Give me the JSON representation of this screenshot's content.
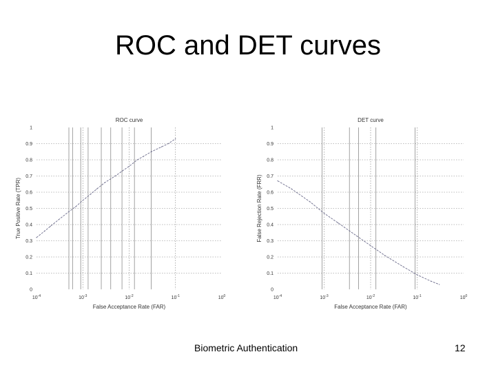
{
  "slide": {
    "title": "ROC and DET curves",
    "footer": "Biometric Authentication",
    "page_number": "12"
  },
  "chart_data": [
    {
      "type": "line",
      "title": "ROC curve",
      "xlabel": "False Acceptance Rate (FAR)",
      "ylabel": "True Positive Rate (TPR)",
      "xscale": "log",
      "xlim": [
        0.0001,
        1
      ],
      "ylim": [
        0,
        1
      ],
      "x_tick_labels": [
        "10-4",
        "10-3",
        "10-2",
        "10-1",
        "100"
      ],
      "y_tick_labels": [
        "0",
        "0.1",
        "0.2",
        "0.3",
        "0.4",
        "0.5",
        "0.6",
        "0.7",
        "0.8",
        "0.9",
        "1"
      ],
      "grid": true,
      "vertical_lines_x": [
        0.0005,
        0.0006,
        0.0009,
        0.0013,
        0.0025,
        0.004,
        0.007,
        0.013,
        0.03
      ],
      "line_color": "#6a6a8a",
      "series": [
        {
          "x": [
            0.0001,
            0.00015,
            0.0002,
            0.0003,
            0.0005,
            0.0007,
            0.001,
            0.0015,
            0.002,
            0.003,
            0.005,
            0.007,
            0.01,
            0.015,
            0.02,
            0.03,
            0.05,
            0.07,
            0.1
          ],
          "y": [
            0.32,
            0.36,
            0.39,
            0.43,
            0.48,
            0.51,
            0.55,
            0.59,
            0.62,
            0.66,
            0.7,
            0.73,
            0.76,
            0.8,
            0.82,
            0.85,
            0.88,
            0.9,
            0.93
          ]
        }
      ]
    },
    {
      "type": "line",
      "title": "DET curve",
      "xlabel": "False Acceptance Rate (FAR)",
      "ylabel": "False Rejection Rate (FRR)",
      "xscale": "log",
      "xlim": [
        0.0001,
        1
      ],
      "ylim": [
        0,
        1
      ],
      "x_tick_labels": [
        "10-4",
        "10-3",
        "10-2",
        "10-1",
        "100"
      ],
      "y_tick_labels": [
        "0",
        "0.1",
        "0.2",
        "0.3",
        "0.4",
        "0.5",
        "0.6",
        "0.7",
        "0.8",
        "0.9",
        "1"
      ],
      "grid": true,
      "vertical_lines_x": [
        0.0009,
        0.0035,
        0.0055,
        0.013,
        0.09
      ],
      "line_color": "#6a6a8a",
      "series": [
        {
          "x": [
            0.0001,
            0.0002,
            0.0005,
            0.001,
            0.002,
            0.005,
            0.01,
            0.02,
            0.05,
            0.1,
            0.2,
            0.3
          ],
          "y": [
            0.67,
            0.62,
            0.54,
            0.47,
            0.41,
            0.33,
            0.27,
            0.21,
            0.14,
            0.09,
            0.05,
            0.03
          ]
        }
      ]
    }
  ]
}
